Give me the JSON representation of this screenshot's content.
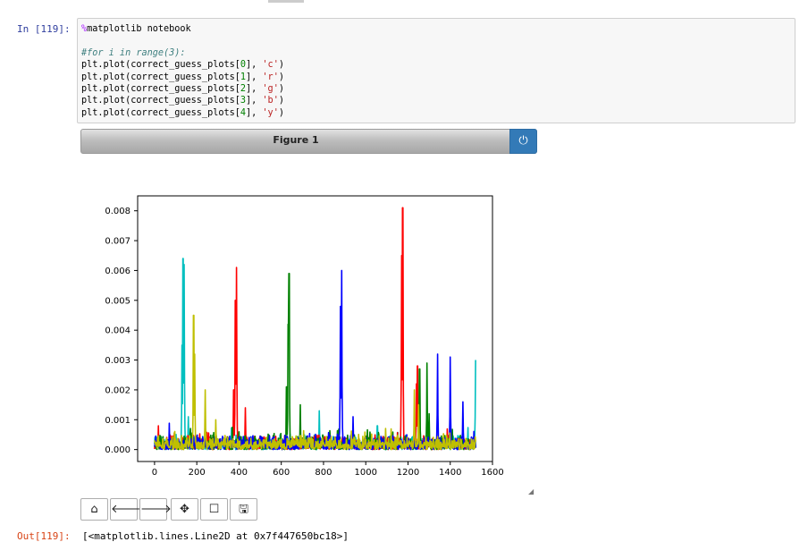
{
  "input_prompt": "In [119]:",
  "code_lines": [
    [
      {
        "t": "%",
        "c": "magic"
      },
      {
        "t": "matplotlib notebook",
        "c": ""
      }
    ],
    [],
    [
      {
        "t": "#for i in range(3):",
        "c": "comment"
      }
    ],
    [
      {
        "t": "plt.plot(correct_guess_plots[",
        "c": ""
      },
      {
        "t": "0",
        "c": "num"
      },
      {
        "t": "], ",
        "c": ""
      },
      {
        "t": "'c'",
        "c": "str"
      },
      {
        "t": ")",
        "c": ""
      }
    ],
    [
      {
        "t": "plt.plot(correct_guess_plots[",
        "c": ""
      },
      {
        "t": "1",
        "c": "num"
      },
      {
        "t": "], ",
        "c": ""
      },
      {
        "t": "'r'",
        "c": "str"
      },
      {
        "t": ")",
        "c": ""
      }
    ],
    [
      {
        "t": "plt.plot(correct_guess_plots[",
        "c": ""
      },
      {
        "t": "2",
        "c": "num"
      },
      {
        "t": "], ",
        "c": ""
      },
      {
        "t": "'g'",
        "c": "str"
      },
      {
        "t": ")",
        "c": ""
      }
    ],
    [
      {
        "t": "plt.plot(correct_guess_plots[",
        "c": ""
      },
      {
        "t": "3",
        "c": "num"
      },
      {
        "t": "], ",
        "c": ""
      },
      {
        "t": "'b'",
        "c": "str"
      },
      {
        "t": ")",
        "c": ""
      }
    ],
    [
      {
        "t": "plt.plot(correct_guess_plots[",
        "c": ""
      },
      {
        "t": "4",
        "c": "num"
      },
      {
        "t": "], ",
        "c": ""
      },
      {
        "t": "'y'",
        "c": "str"
      },
      {
        "t": ")",
        "c": ""
      }
    ]
  ],
  "figure": {
    "title": "Figure 1",
    "close_icon": "power-icon",
    "toolbar_icons": [
      "home-icon",
      "back-arrow-icon",
      "forward-arrow-icon",
      "move-icon",
      "zoom-rect-icon",
      "save-icon"
    ]
  },
  "chart_data": {
    "type": "line",
    "xlim": [
      -80,
      1600
    ],
    "ylim": [
      -0.0004,
      0.0085
    ],
    "xticks": [
      0,
      200,
      400,
      600,
      800,
      1000,
      1200,
      1400,
      1600
    ],
    "yticks": [
      0.0,
      0.001,
      0.002,
      0.003,
      0.004,
      0.005,
      0.006,
      0.007,
      0.008
    ],
    "ytick_labels": [
      "0.000",
      "0.001",
      "0.002",
      "0.003",
      "0.004",
      "0.005",
      "0.006",
      "0.007",
      "0.008"
    ],
    "series": [
      {
        "color": "#00bfbf",
        "peaks": [
          [
            130,
            0.0035
          ],
          [
            135,
            0.0064
          ],
          [
            140,
            0.0062
          ],
          [
            160,
            0.0011
          ],
          [
            780,
            0.0013
          ],
          [
            1055,
            0.0008
          ],
          [
            1520,
            0.003
          ],
          [
            1525,
            0.0035
          ]
        ]
      },
      {
        "color": "#ff0000",
        "peaks": [
          [
            375,
            0.002
          ],
          [
            383,
            0.005
          ],
          [
            388,
            0.0061
          ],
          [
            430,
            0.0014
          ],
          [
            1170,
            0.0065
          ],
          [
            1175,
            0.0081
          ],
          [
            1240,
            0.0022
          ],
          [
            1245,
            0.0028
          ]
        ]
      },
      {
        "color": "#008000",
        "peaks": [
          [
            625,
            0.0021
          ],
          [
            633,
            0.0042
          ],
          [
            637,
            0.0059
          ],
          [
            690,
            0.0015
          ],
          [
            1255,
            0.0027
          ],
          [
            1290,
            0.0029
          ],
          [
            1300,
            0.0012
          ]
        ]
      },
      {
        "color": "#0000ff",
        "peaks": [
          [
            880,
            0.0048
          ],
          [
            886,
            0.006
          ],
          [
            940,
            0.0011
          ],
          [
            1340,
            0.0032
          ],
          [
            1400,
            0.0031
          ],
          [
            1460,
            0.0016
          ]
        ]
      },
      {
        "color": "#bfbf00",
        "peaks": [
          [
            185,
            0.0045
          ],
          [
            190,
            0.0032
          ],
          [
            240,
            0.002
          ],
          [
            290,
            0.001
          ],
          [
            1230,
            0.002
          ],
          [
            1250,
            0.0015
          ]
        ]
      }
    ],
    "n_points": 1520,
    "baseline_max": 0.00035
  },
  "output_prompt": "Out[119]:",
  "output_text": "[<matplotlib.lines.Line2D at 0x7f447650bc18>]"
}
